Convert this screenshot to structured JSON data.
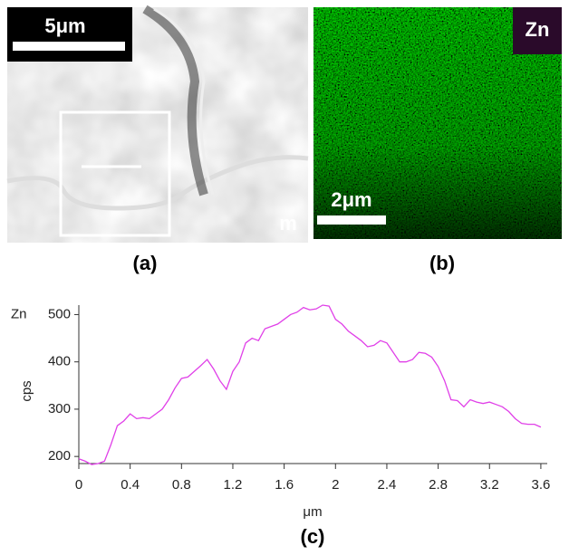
{
  "figure": {
    "panel_a": {
      "scale": "5μm",
      "corner": "m",
      "caption": "(a)"
    },
    "panel_b": {
      "element": "Zn",
      "scale": "2μm",
      "caption": "(b)"
    },
    "panel_c": {
      "caption": "(c)"
    }
  },
  "chart_data": {
    "type": "line",
    "x_label": "μm",
    "y_label": "cps",
    "x": [
      0,
      0.05,
      0.1,
      0.15,
      0.2,
      0.25,
      0.3,
      0.35,
      0.4,
      0.45,
      0.5,
      0.55,
      0.6,
      0.65,
      0.7,
      0.75,
      0.8,
      0.85,
      0.9,
      0.95,
      1.0,
      1.05,
      1.1,
      1.15,
      1.2,
      1.25,
      1.3,
      1.35,
      1.4,
      1.45,
      1.5,
      1.55,
      1.6,
      1.65,
      1.7,
      1.75,
      1.8,
      1.85,
      1.9,
      1.95,
      2.0,
      2.05,
      2.1,
      2.15,
      2.2,
      2.25,
      2.3,
      2.35,
      2.4,
      2.45,
      2.5,
      2.55,
      2.6,
      2.65,
      2.7,
      2.75,
      2.8,
      2.85,
      2.9,
      2.95,
      3.0,
      3.05,
      3.1,
      3.15,
      3.2,
      3.25,
      3.3,
      3.35,
      3.4,
      3.45,
      3.5,
      3.55,
      3.6
    ],
    "series": [
      {
        "name": "Zn",
        "color": "#e040e8",
        "values": [
          195,
          190,
          183,
          185,
          190,
          225,
          265,
          275,
          290,
          280,
          282,
          280,
          290,
          300,
          320,
          345,
          365,
          368,
          380,
          392,
          405,
          385,
          360,
          342,
          380,
          400,
          440,
          450,
          445,
          470,
          475,
          480,
          490,
          500,
          505,
          515,
          510,
          512,
          520,
          518,
          490,
          480,
          465,
          455,
          445,
          432,
          435,
          445,
          440,
          420,
          400,
          400,
          405,
          420,
          418,
          410,
          390,
          360,
          320,
          318,
          305,
          320,
          315,
          312,
          315,
          310,
          305,
          295,
          280,
          270,
          268,
          268,
          262
        ]
      }
    ],
    "xlim": [
      0,
      3.65
    ],
    "ylim": [
      185,
      520
    ],
    "xticks": [
      0,
      0.4,
      0.8,
      1.2,
      1.6,
      2,
      2.4,
      2.8,
      3.2,
      3.6
    ],
    "yticks": [
      200,
      300,
      400,
      500
    ]
  }
}
